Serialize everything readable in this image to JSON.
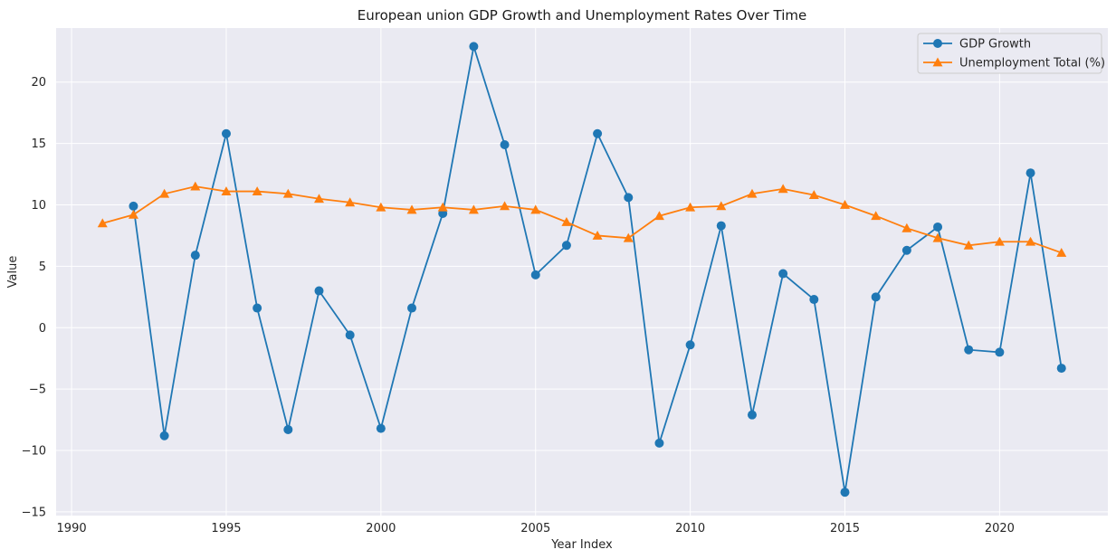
{
  "chart_data": {
    "type": "line",
    "title": "European union GDP Growth and Unemployment Rates Over Time",
    "xlabel": "Year Index",
    "ylabel": "Value",
    "xlim": [
      1989.5,
      2023.5
    ],
    "ylim": [
      -15.3,
      24.4
    ],
    "xticks": [
      1990,
      1995,
      2000,
      2005,
      2010,
      2015,
      2020
    ],
    "yticks": [
      -15,
      -10,
      -5,
      0,
      5,
      10,
      15,
      20
    ],
    "grid": true,
    "legend_position": "top-right",
    "background": "#eaeaf2",
    "series": [
      {
        "name": "GDP Growth",
        "color": "#1f77b4",
        "marker": "circle",
        "x": [
          1992,
          1993,
          1994,
          1995,
          1996,
          1997,
          1998,
          1999,
          2000,
          2001,
          2002,
          2003,
          2004,
          2005,
          2006,
          2007,
          2008,
          2009,
          2010,
          2011,
          2012,
          2013,
          2014,
          2015,
          2016,
          2017,
          2018,
          2019,
          2020,
          2021,
          2022
        ],
        "y": [
          9.9,
          -8.8,
          5.9,
          15.8,
          1.6,
          -8.3,
          3.0,
          -0.6,
          -8.2,
          1.6,
          9.3,
          22.9,
          14.9,
          4.3,
          6.7,
          15.8,
          10.6,
          -9.4,
          -1.4,
          8.3,
          -7.1,
          4.4,
          2.3,
          -13.4,
          2.5,
          6.3,
          8.2,
          -1.8,
          -2.0,
          12.6,
          -3.3
        ]
      },
      {
        "name": "Unemployment Total (%)",
        "color": "#ff7f0e",
        "marker": "triangle",
        "x": [
          1991,
          1992,
          1993,
          1994,
          1995,
          1996,
          1997,
          1998,
          1999,
          2000,
          2001,
          2002,
          2003,
          2004,
          2005,
          2006,
          2007,
          2008,
          2009,
          2010,
          2011,
          2012,
          2013,
          2014,
          2015,
          2016,
          2017,
          2018,
          2019,
          2020,
          2021,
          2022
        ],
        "y": [
          8.5,
          9.2,
          10.9,
          11.5,
          11.1,
          11.1,
          10.9,
          10.5,
          10.2,
          9.8,
          9.6,
          9.8,
          9.6,
          9.9,
          9.6,
          8.6,
          7.5,
          7.3,
          9.1,
          9.8,
          9.9,
          10.9,
          11.3,
          10.8,
          10.0,
          9.1,
          8.1,
          7.3,
          6.7,
          7.0,
          7.0,
          6.1
        ]
      }
    ]
  }
}
